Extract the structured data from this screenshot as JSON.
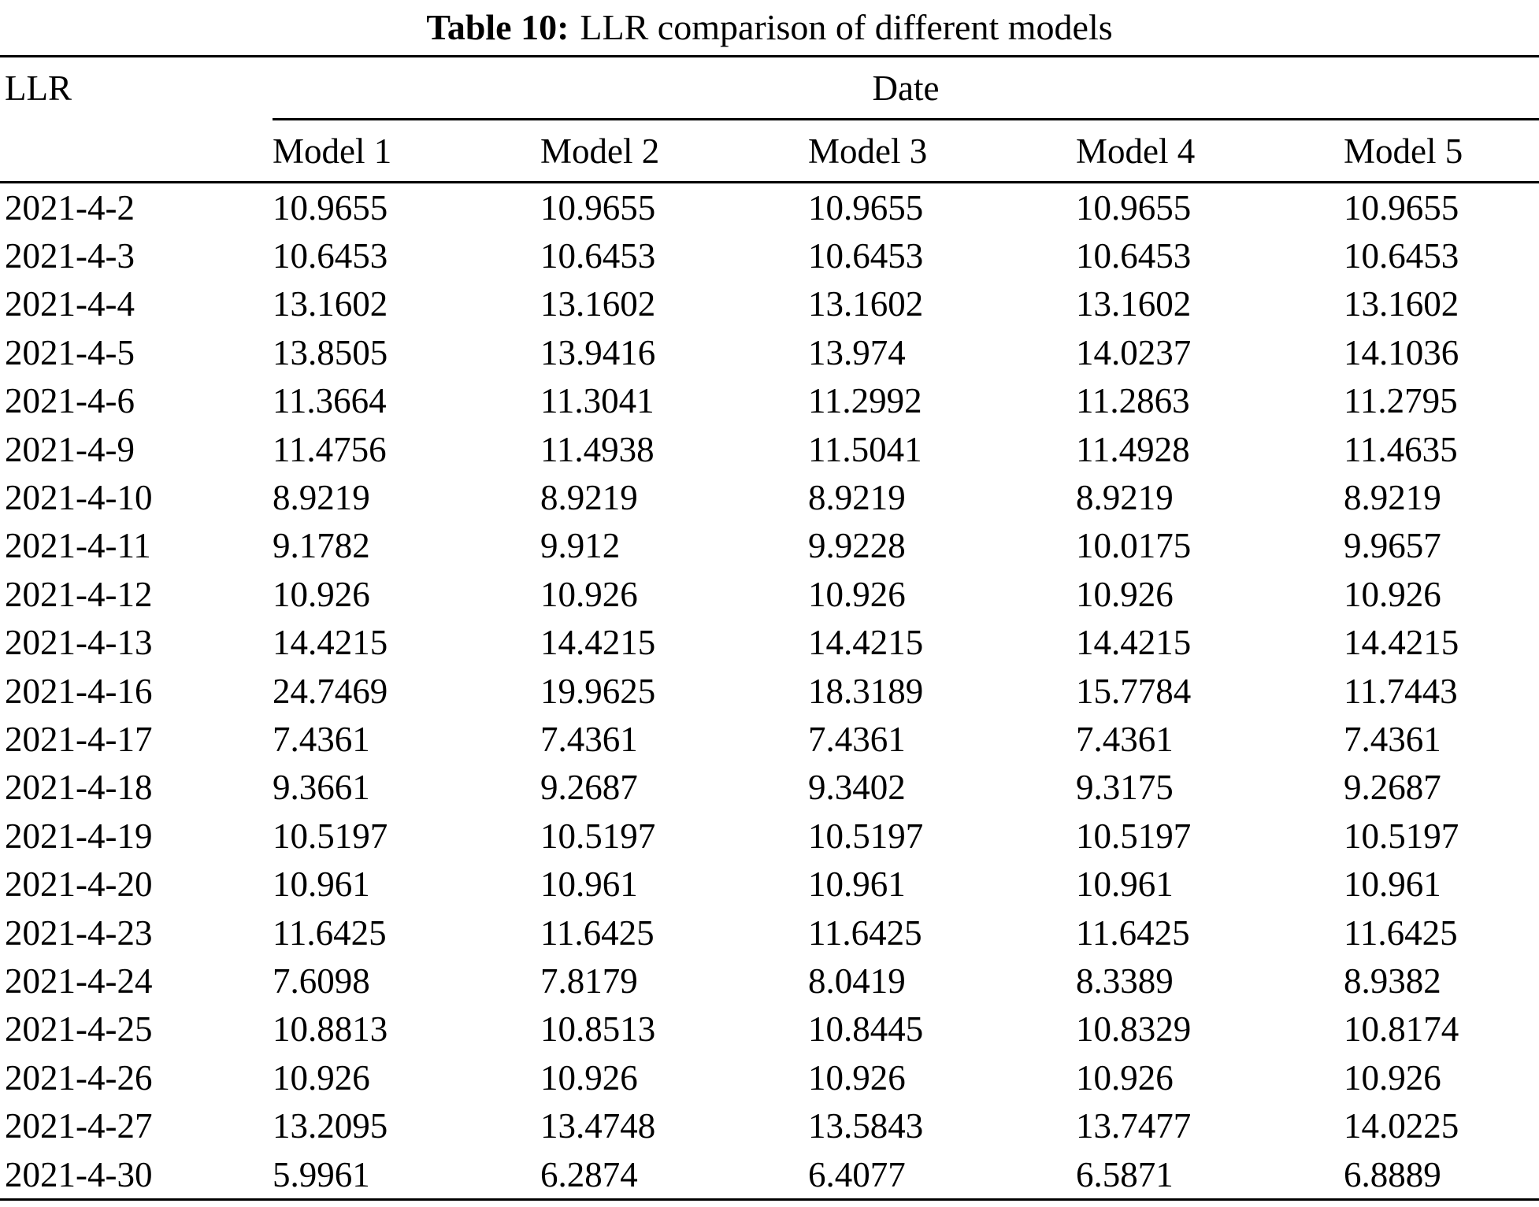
{
  "caption": {
    "label": "Table 10:",
    "text": "LLR comparison of different models"
  },
  "table": {
    "row_header_label": "LLR",
    "col_group_label": "Date",
    "columns": [
      "Model 1",
      "Model 2",
      "Model 3",
      "Model 4",
      "Model 5"
    ],
    "rows": [
      {
        "date": "2021-4-2",
        "values": [
          "10.9655",
          "10.9655",
          "10.9655",
          "10.9655",
          "10.9655"
        ]
      },
      {
        "date": "2021-4-3",
        "values": [
          "10.6453",
          "10.6453",
          "10.6453",
          "10.6453",
          "10.6453"
        ]
      },
      {
        "date": "2021-4-4",
        "values": [
          "13.1602",
          "13.1602",
          "13.1602",
          "13.1602",
          "13.1602"
        ]
      },
      {
        "date": "2021-4-5",
        "values": [
          "13.8505",
          "13.9416",
          "13.974",
          "14.0237",
          "14.1036"
        ]
      },
      {
        "date": "2021-4-6",
        "values": [
          "11.3664",
          "11.3041",
          "11.2992",
          "11.2863",
          "11.2795"
        ]
      },
      {
        "date": "2021-4-9",
        "values": [
          "11.4756",
          "11.4938",
          "11.5041",
          "11.4928",
          "11.4635"
        ]
      },
      {
        "date": "2021-4-10",
        "values": [
          "8.9219",
          "8.9219",
          "8.9219",
          "8.9219",
          "8.9219"
        ]
      },
      {
        "date": "2021-4-11",
        "values": [
          "9.1782",
          "9.912",
          "9.9228",
          "10.0175",
          "9.9657"
        ]
      },
      {
        "date": "2021-4-12",
        "values": [
          "10.926",
          "10.926",
          "10.926",
          "10.926",
          "10.926"
        ]
      },
      {
        "date": "2021-4-13",
        "values": [
          "14.4215",
          "14.4215",
          "14.4215",
          "14.4215",
          "14.4215"
        ]
      },
      {
        "date": "2021-4-16",
        "values": [
          "24.7469",
          "19.9625",
          "18.3189",
          "15.7784",
          "11.7443"
        ]
      },
      {
        "date": "2021-4-17",
        "values": [
          "7.4361",
          "7.4361",
          "7.4361",
          "7.4361",
          "7.4361"
        ]
      },
      {
        "date": "2021-4-18",
        "values": [
          "9.3661",
          "9.2687",
          "9.3402",
          "9.3175",
          "9.2687"
        ]
      },
      {
        "date": "2021-4-19",
        "values": [
          "10.5197",
          "10.5197",
          "10.5197",
          "10.5197",
          "10.5197"
        ]
      },
      {
        "date": "2021-4-20",
        "values": [
          "10.961",
          "10.961",
          "10.961",
          "10.961",
          "10.961"
        ]
      },
      {
        "date": "2021-4-23",
        "values": [
          "11.6425",
          "11.6425",
          "11.6425",
          "11.6425",
          "11.6425"
        ]
      },
      {
        "date": "2021-4-24",
        "values": [
          "7.6098",
          "7.8179",
          "8.0419",
          "8.3389",
          "8.9382"
        ]
      },
      {
        "date": "2021-4-25",
        "values": [
          "10.8813",
          "10.8513",
          "10.8445",
          "10.8329",
          "10.8174"
        ]
      },
      {
        "date": "2021-4-26",
        "values": [
          "10.926",
          "10.926",
          "10.926",
          "10.926",
          "10.926"
        ]
      },
      {
        "date": "2021-4-27",
        "values": [
          "13.2095",
          "13.4748",
          "13.5843",
          "13.7477",
          "14.0225"
        ]
      },
      {
        "date": "2021-4-30",
        "values": [
          "5.9961",
          "6.2874",
          "6.4077",
          "6.5871",
          "6.8889"
        ]
      }
    ]
  },
  "colors": {
    "text": "#000000",
    "rule": "#000000",
    "background": "#ffffff"
  }
}
